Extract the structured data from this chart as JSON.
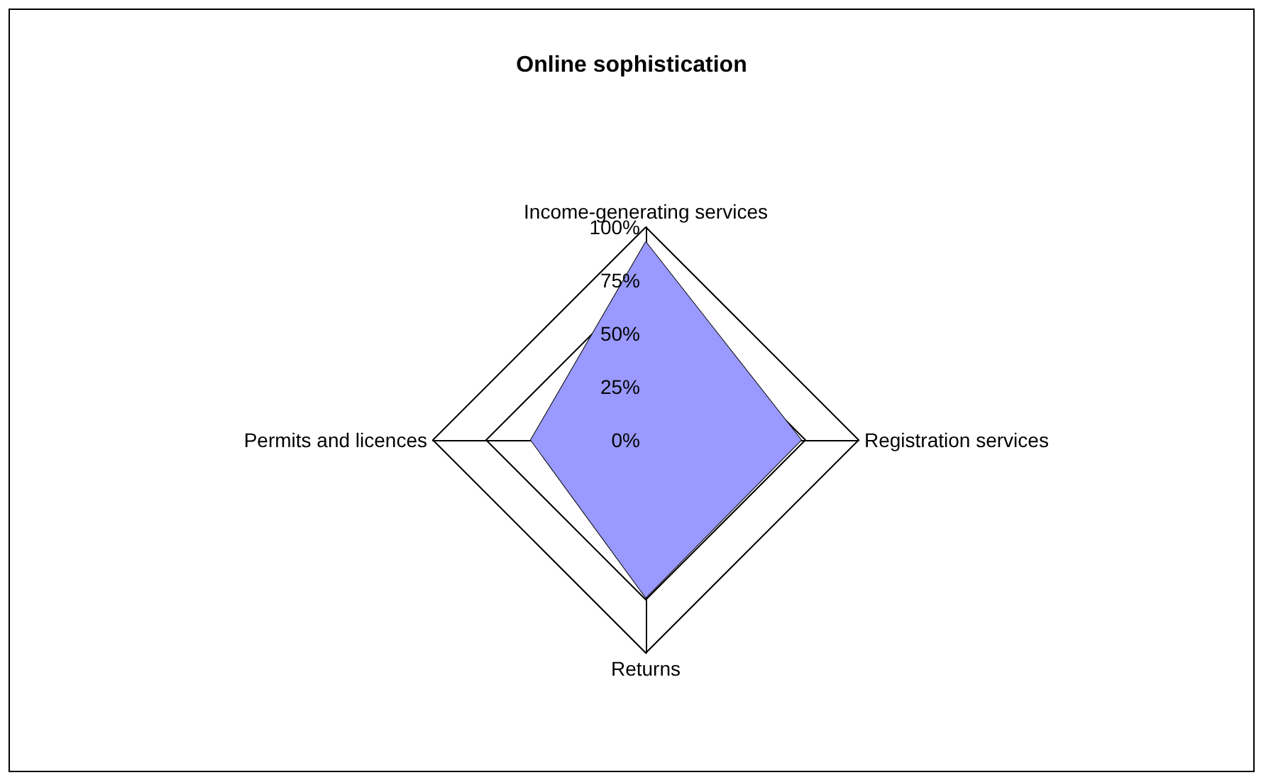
{
  "chart_data": {
    "type": "radar",
    "title": "Online sophistication",
    "categories": [
      "Income-generating services",
      "Registration services",
      "Returns",
      "Permits and licences"
    ],
    "series": [
      {
        "color": "#9999ff",
        "values": [
          93,
          73,
          74,
          54
        ]
      }
    ],
    "ylim": [
      0,
      100
    ],
    "yticks": [
      {
        "value": 0,
        "label": "0%"
      },
      {
        "value": 25,
        "label": "25%"
      },
      {
        "value": 50,
        "label": "50%"
      },
      {
        "value": 75,
        "label": "75%"
      },
      {
        "value": 100,
        "label": "100%"
      }
    ],
    "grid": true,
    "marker": "none",
    "line_style": "solid"
  }
}
